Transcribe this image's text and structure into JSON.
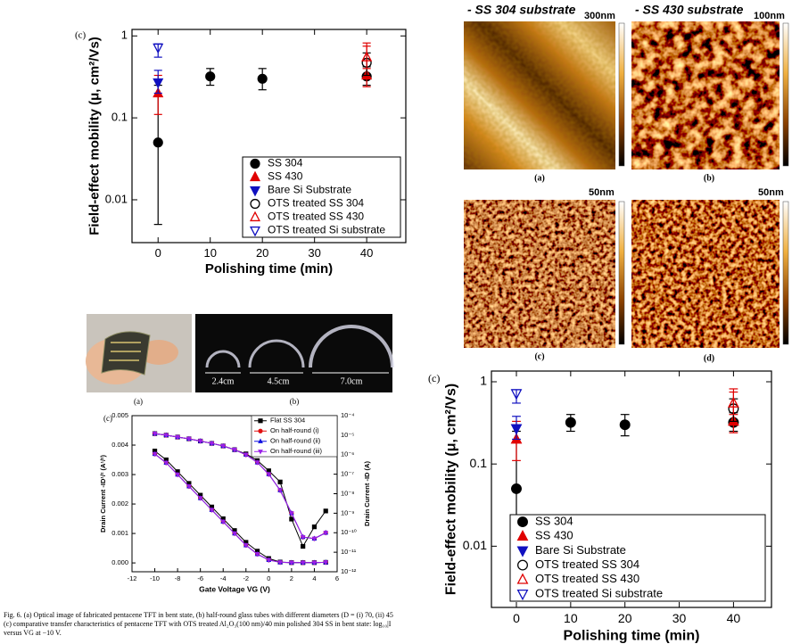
{
  "chart_data": [
    {
      "type": "scatter",
      "label": "(c)",
      "xlabel": "Polishing time (min)",
      "ylabel": "Field-effect mobility (μ, cm²/Vs)",
      "xlim": [
        -5,
        47.5
      ],
      "ylim": [
        0.003,
        1.2
      ],
      "log_y": true,
      "xticks": [
        0,
        10,
        20,
        30,
        40
      ],
      "yticks": [
        0.01,
        0.1,
        1
      ],
      "legend": "lower right",
      "series": [
        {
          "name": "SS 304",
          "color": "#000000",
          "marker": "circle",
          "filled": true,
          "x": [
            0,
            10,
            20,
            40
          ],
          "values": [
            0.05,
            0.32,
            0.3,
            0.32
          ],
          "low": [
            0.005,
            0.25,
            0.22,
            0.25
          ],
          "high": [
            0.25,
            0.4,
            0.4,
            0.42
          ]
        },
        {
          "name": "SS 430",
          "color": "#e00000",
          "marker": "triangle-up",
          "filled": true,
          "x": [
            0,
            40
          ],
          "values": [
            0.2,
            0.33
          ],
          "low": [
            0.11,
            0.24
          ],
          "high": [
            0.33,
            0.82
          ]
        },
        {
          "name": "Bare Si Substrate",
          "color": "#1010c0",
          "marker": "triangle-down",
          "filled": true,
          "x": [
            0
          ],
          "values": [
            0.27
          ],
          "low": [
            0.2
          ],
          "high": [
            0.38
          ]
        },
        {
          "name": "OTS treated SS 304",
          "color": "#000000",
          "marker": "circle",
          "filled": false,
          "x": [
            40
          ],
          "values": [
            0.47
          ],
          "low": [
            0.33
          ],
          "high": [
            0.62
          ]
        },
        {
          "name": "OTS treated SS 430",
          "color": "#e00000",
          "marker": "triangle-up",
          "filled": false,
          "x": [
            40
          ],
          "values": [
            0.55
          ],
          "low": [
            0.4
          ],
          "high": [
            0.75
          ]
        },
        {
          "name": "OTS treated Si substrate",
          "color": "#1010c0",
          "marker": "triangle-down",
          "filled": false,
          "x": [
            0
          ],
          "values": [
            0.72
          ],
          "low": [
            0.55
          ],
          "high": [
            0.8
          ]
        }
      ]
    },
    {
      "type": "line",
      "label": "(c)",
      "xlabel": "Gate Voltage VG (V)",
      "ylabel": "Drain Current -ID¹/² (A¹/²)",
      "y2label": "Drain Current -ID (A)",
      "x": [
        -10,
        -9,
        -8,
        -7,
        -6,
        -5,
        -4,
        -3,
        -2,
        -1,
        0,
        1,
        2,
        3,
        4,
        5
      ],
      "xlim": [
        -12,
        6
      ],
      "xticks": [
        -12,
        -10,
        -8,
        -6,
        -4,
        -2,
        0,
        2,
        4,
        6
      ],
      "ylim": [
        -0.0003,
        0.005
      ],
      "yticks": [
        {
          "value": 0,
          "label": "0.000"
        },
        {
          "value": 0.001,
          "label": "0.001"
        },
        {
          "value": 0.002,
          "label": "0.002"
        },
        {
          "value": 0.003,
          "label": "0.003"
        },
        {
          "value": 0.004,
          "label": "0.004"
        },
        {
          "value": 0.005,
          "label": "0.005"
        }
      ],
      "y2lim": [
        1e-12,
        0.0001
      ],
      "log_y2": true,
      "y2ticks": [
        {
          "value": 0.0001,
          "label": "10⁻⁴"
        },
        {
          "value": 1e-05,
          "label": "10⁻⁵"
        },
        {
          "value": 1e-06,
          "label": "10⁻⁶"
        },
        {
          "value": 1e-07,
          "label": "10⁻⁷"
        },
        {
          "value": 1e-08,
          "label": "10⁻⁸"
        },
        {
          "value": 1e-09,
          "label": "10⁻⁹"
        },
        {
          "value": 1e-10,
          "label": "10⁻¹⁰"
        },
        {
          "value": 1e-11,
          "label": "10⁻¹¹"
        },
        {
          "value": 1e-12,
          "label": "10⁻¹²"
        }
      ],
      "legend": "upper right",
      "series": [
        {
          "name": "Flat SS 304",
          "color": "#000000",
          "marker": "square",
          "values": [
            0.0038,
            0.0035,
            0.0031,
            0.0027,
            0.0023,
            0.0019,
            0.0015,
            0.0011,
            0.0007,
            0.0004,
            0.00015,
            3e-05,
            1e-05,
            1e-05,
            1e-05,
            2e-05
          ]
        },
        {
          "name": "On half-round (i)",
          "color": "#e01010",
          "marker": "circle",
          "values": [
            0.0037,
            0.0034,
            0.003,
            0.0026,
            0.0022,
            0.0018,
            0.0014,
            0.001,
            0.0006,
            0.0003,
            0.0001,
            2e-05,
            1e-05,
            1e-05,
            1e-05,
            2e-05
          ]
        },
        {
          "name": "On half-round (ii)",
          "color": "#1010e0",
          "marker": "triangle-up",
          "values": [
            0.0037,
            0.0034,
            0.003,
            0.0026,
            0.0022,
            0.0018,
            0.0014,
            0.001,
            0.0006,
            0.0003,
            0.0001,
            2e-05,
            1e-05,
            1e-05,
            1e-05,
            2e-05
          ]
        },
        {
          "name": "On half-round (iii)",
          "color": "#9a20e8",
          "marker": "triangle-down",
          "values": [
            0.0037,
            0.0034,
            0.003,
            0.0026,
            0.0022,
            0.0018,
            0.0014,
            0.001,
            0.0006,
            0.0003,
            0.0001,
            2e-05,
            1e-05,
            1e-05,
            1e-05,
            2e-05
          ]
        },
        {
          "axis": "y2",
          "color": "#000000",
          "marker": "square",
          "values": [
            1.2e-05,
            1e-05,
            8e-06,
            6.5e-06,
            5e-06,
            3.8e-06,
            2.8e-06,
            1.8e-06,
            1.1e-06,
            5e-07,
            1.5e-07,
            4e-08,
            5e-10,
            2e-11,
            2e-10,
            1.3e-09
          ]
        },
        {
          "axis": "y2",
          "color": "#e01010",
          "marker": "circle",
          "values": [
            1.2e-05,
            1e-05,
            8e-06,
            6.5e-06,
            5e-06,
            3.8e-06,
            2.8e-06,
            1.8e-06,
            1e-06,
            4e-07,
            1e-07,
            1.5e-08,
            1e-09,
            6e-11,
            5e-11,
            1e-10
          ]
        },
        {
          "axis": "y2",
          "color": "#1010e0",
          "marker": "triangle-up",
          "values": [
            1.2e-05,
            1e-05,
            8e-06,
            6.5e-06,
            5e-06,
            3.8e-06,
            2.8e-06,
            1.8e-06,
            1e-06,
            4e-07,
            1e-07,
            1.5e-08,
            1e-09,
            6e-11,
            5e-11,
            1e-10
          ]
        },
        {
          "axis": "y2",
          "color": "#9a20e8",
          "marker": "triangle-down",
          "values": [
            1.2e-05,
            1e-05,
            8e-06,
            6.5e-06,
            5e-06,
            3.8e-06,
            2.8e-06,
            1.8e-06,
            1e-06,
            4e-07,
            1e-07,
            1.5e-08,
            1e-09,
            6e-11,
            5e-11,
            1e-10
          ]
        }
      ]
    },
    {
      "type": "scatter",
      "label": "(c)",
      "xlabel": "Polishing time (min)",
      "ylabel": "Field-effect mobility (μ, cm²/Vs)",
      "xlim": [
        -4.6,
        47
      ],
      "ylim": [
        0.0018,
        1.35
      ],
      "log_y": true,
      "xticks": [
        0,
        10,
        20,
        30,
        40
      ],
      "yticks": [
        0.01,
        0.1,
        1
      ],
      "legend": "lower right",
      "series": [
        {
          "name": "SS 304",
          "color": "#000000",
          "marker": "circle",
          "filled": true,
          "x": [
            0,
            10,
            20,
            40
          ],
          "values": [
            0.05,
            0.32,
            0.3,
            0.32
          ],
          "low": [
            0.005,
            0.25,
            0.22,
            0.25
          ],
          "high": [
            0.25,
            0.4,
            0.4,
            0.42
          ]
        },
        {
          "name": "SS 430",
          "color": "#e00000",
          "marker": "triangle-up",
          "filled": true,
          "x": [
            0,
            40
          ],
          "values": [
            0.2,
            0.33
          ],
          "low": [
            0.11,
            0.24
          ],
          "high": [
            0.33,
            0.82
          ]
        },
        {
          "name": "Bare Si Substrate",
          "color": "#1010c0",
          "marker": "triangle-down",
          "filled": true,
          "x": [
            0
          ],
          "values": [
            0.27
          ],
          "low": [
            0.2
          ],
          "high": [
            0.38
          ]
        },
        {
          "name": "OTS treated SS 304",
          "color": "#000000",
          "marker": "circle",
          "filled": false,
          "x": [
            40
          ],
          "values": [
            0.47
          ],
          "low": [
            0.33
          ],
          "high": [
            0.62
          ]
        },
        {
          "name": "OTS treated SS 430",
          "color": "#e00000",
          "marker": "triangle-up",
          "filled": false,
          "x": [
            40
          ],
          "values": [
            0.55
          ],
          "low": [
            0.4
          ],
          "high": [
            0.75
          ]
        },
        {
          "name": "OTS treated Si substrate",
          "color": "#1010c0",
          "marker": "triangle-down",
          "filled": false,
          "x": [
            0
          ],
          "values": [
            0.72
          ],
          "low": [
            0.55
          ],
          "high": [
            0.8
          ]
        }
      ]
    }
  ],
  "afm": {
    "title_a": "- SS 304 substrate",
    "title_b": "- SS 430 substrate",
    "scale_a": "300nm",
    "scale_b": "100nm",
    "scale_c": "50nm",
    "scale_d": "50nm",
    "label_a": "(a)",
    "label_b": "(b)",
    "label_c": "(c)",
    "label_d": "(d)"
  },
  "photos": {
    "label_a": "(a)",
    "label_b": "(b)",
    "size_1": "2.4cm",
    "size_2": "4.5cm",
    "size_3": "7.0cm"
  },
  "caption": {
    "lines": [
      "Fig. 6. (a) Optical image of fabricated pentacene TFT in bent state, (b) half-round glass tubes with different diameters (D = (i) 70, (ii) 45",
      "(c) comparative transfer characteristics of pentacene TFT with OTS treated Al₂O₃(100 nm)/40 min polished 304 SS in bent state: log₁₀|I",
      "versus VG at −10 V."
    ]
  }
}
